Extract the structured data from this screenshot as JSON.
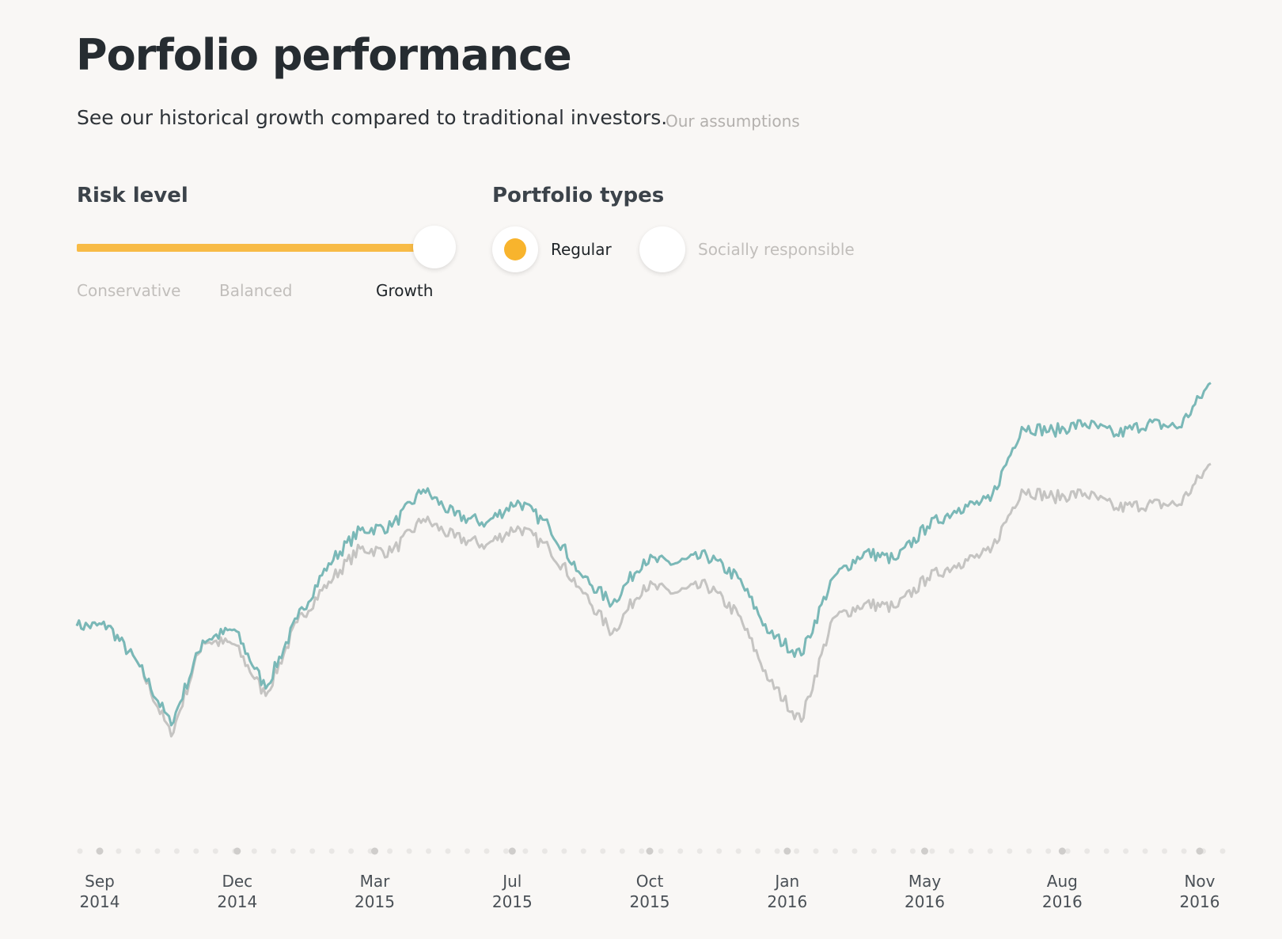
{
  "header": {
    "title": "Porfolio performance",
    "subtitle": "See our historical growth compared to traditional investors.",
    "assumptions_link": "Our assumptions"
  },
  "risk": {
    "label": "Risk level",
    "options": [
      "Conservative",
      "Balanced",
      "Growth"
    ],
    "selected": "Growth",
    "slider_value": 1.0,
    "track_color": "#f8bb46"
  },
  "portfolio_types": {
    "label": "Portfolio types",
    "options": [
      {
        "label": "Regular",
        "checked": true
      },
      {
        "label": "Socially responsible",
        "checked": false
      }
    ],
    "accent_color": "#f8b42d"
  },
  "chart_data": {
    "type": "line",
    "title": "",
    "xlabel": "",
    "ylabel": "",
    "grid": false,
    "y_axis_visible": false,
    "legend": "none",
    "x_ticks": [
      {
        "month": "Sep",
        "year": "2014"
      },
      {
        "month": "Dec",
        "year": "2014"
      },
      {
        "month": "Mar",
        "year": "2015"
      },
      {
        "month": "Jul",
        "year": "2015"
      },
      {
        "month": "Oct",
        "year": "2015"
      },
      {
        "month": "Jan",
        "year": "2016"
      },
      {
        "month": "May",
        "year": "2016"
      },
      {
        "month": "Aug",
        "year": "2016"
      },
      {
        "month": "Nov",
        "year": "2016"
      }
    ],
    "x": [
      "2014-08",
      "2014-09",
      "2014-10",
      "2014-10",
      "2014-11",
      "2014-12",
      "2015-01",
      "2015-02",
      "2015-02",
      "2015-03",
      "2015-04",
      "2015-05",
      "2015-05",
      "2015-06",
      "2015-07",
      "2015-08",
      "2015-08",
      "2015-09",
      "2015-10",
      "2015-11",
      "2015-11",
      "2015-12",
      "2016-01",
      "2016-02",
      "2016-02",
      "2016-03",
      "2016-04",
      "2016-05",
      "2016-06",
      "2016-06",
      "2016-07",
      "2016-08",
      "2016-09",
      "2016-09",
      "2016-10",
      "2016-11",
      "2016-11"
    ],
    "series": [
      {
        "color": "#7ab8b7",
        "values": [
          0.3,
          0.3,
          0.19,
          0.03,
          0.26,
          0.29,
          0.13,
          0.32,
          0.47,
          0.56,
          0.57,
          0.67,
          0.6,
          0.58,
          0.64,
          0.57,
          0.44,
          0.36,
          0.48,
          0.47,
          0.49,
          0.43,
          0.28,
          0.22,
          0.43,
          0.5,
          0.48,
          0.57,
          0.62,
          0.64,
          0.84,
          0.83,
          0.85,
          0.82,
          0.85,
          0.84,
          0.96
        ]
      },
      {
        "color": "#c5c4c2",
        "values": [
          0.3,
          0.3,
          0.19,
          0.0,
          0.26,
          0.25,
          0.11,
          0.31,
          0.42,
          0.51,
          0.5,
          0.59,
          0.54,
          0.52,
          0.57,
          0.51,
          0.4,
          0.28,
          0.41,
          0.39,
          0.41,
          0.33,
          0.15,
          0.04,
          0.32,
          0.36,
          0.35,
          0.43,
          0.47,
          0.5,
          0.67,
          0.65,
          0.66,
          0.62,
          0.63,
          0.63,
          0.74
        ]
      }
    ]
  }
}
